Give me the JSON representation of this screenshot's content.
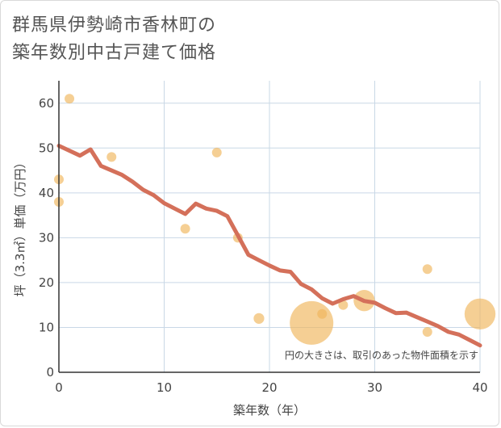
{
  "title_lines": [
    "群馬県伊勢崎市香林町の",
    "築年数別中古戸建て価格"
  ],
  "chart_data": {
    "type": "scatter+line",
    "title": "群馬県伊勢崎市香林町の築年数別中古戸建て価格",
    "xlabel": "築年数（年）",
    "ylabel": "坪（3.3㎡）単価（万円）",
    "xlim": [
      0,
      40
    ],
    "ylim": [
      0,
      65
    ],
    "xticks": [
      0,
      10,
      20,
      30,
      40
    ],
    "yticks": [
      0,
      10,
      20,
      30,
      40,
      50,
      60
    ],
    "grid": true,
    "annotation": "円の大きさは、取引のあった物件面積を示す",
    "colors": {
      "line": "#d4705a",
      "bubble": "#f0b65a",
      "grid": "#c9d8e6",
      "axis": "#333333"
    },
    "scatter": [
      {
        "x": 0,
        "y": 43,
        "size": 1
      },
      {
        "x": 0,
        "y": 38,
        "size": 1
      },
      {
        "x": 1,
        "y": 61,
        "size": 1
      },
      {
        "x": 5,
        "y": 48,
        "size": 1
      },
      {
        "x": 12,
        "y": 32,
        "size": 1
      },
      {
        "x": 15,
        "y": 49,
        "size": 1
      },
      {
        "x": 17,
        "y": 30,
        "size": 1
      },
      {
        "x": 19,
        "y": 12,
        "size": 1.1
      },
      {
        "x": 24,
        "y": 11,
        "size": 4.5
      },
      {
        "x": 25,
        "y": 13,
        "size": 1
      },
      {
        "x": 27,
        "y": 15,
        "size": 1
      },
      {
        "x": 29,
        "y": 16,
        "size": 2.2
      },
      {
        "x": 35,
        "y": 23,
        "size": 1
      },
      {
        "x": 35,
        "y": 9,
        "size": 1
      },
      {
        "x": 40,
        "y": 13,
        "size": 3.2
      }
    ],
    "trend": {
      "x": [
        0,
        2,
        3,
        4,
        6,
        7,
        8,
        9,
        10,
        11,
        12,
        13,
        14,
        15,
        16,
        17,
        18,
        19,
        20,
        21,
        22,
        23,
        24,
        25,
        26,
        27,
        28,
        29,
        30,
        31,
        32,
        33,
        34,
        35,
        36,
        37,
        38,
        39,
        40
      ],
      "y": [
        50.5,
        48.3,
        49.7,
        46,
        44,
        42.5,
        40.7,
        39.5,
        37.7,
        36.5,
        35.3,
        37.6,
        36.5,
        36,
        34.8,
        30.5,
        26.2,
        25,
        23.8,
        22.7,
        22.4,
        19.7,
        18.5,
        16.5,
        15.3,
        16.3,
        17,
        15.9,
        15.5,
        14.3,
        13.2,
        13.3,
        12.3,
        11.3,
        10.3,
        9,
        8.4,
        7.2,
        6
      ]
    }
  }
}
